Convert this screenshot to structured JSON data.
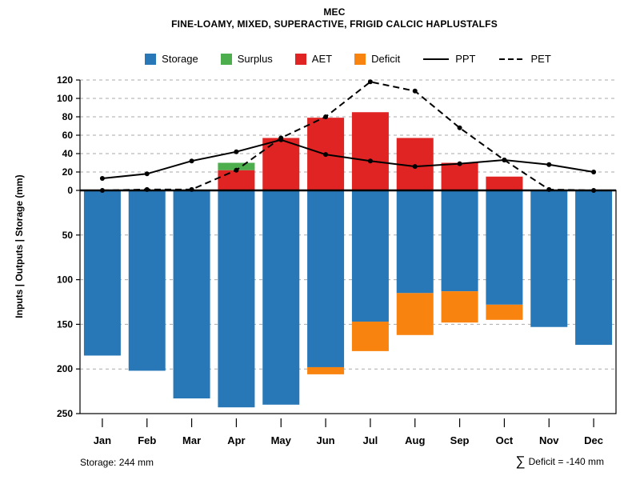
{
  "header": {
    "title": "MEC",
    "subtitle": "FINE-LOAMY, MIXED, SUPERACTIVE, FRIGID CALCIC HAPLUSTALFS"
  },
  "legend": {
    "items": [
      {
        "label": "Storage",
        "swatch": "square",
        "color": "#2878B8"
      },
      {
        "label": "Surplus",
        "swatch": "square",
        "color": "#4CAE4C"
      },
      {
        "label": "AET",
        "swatch": "square",
        "color": "#E02423"
      },
      {
        "label": "Deficit",
        "swatch": "square",
        "color": "#F9830F"
      },
      {
        "label": "PPT",
        "swatch": "line-solid",
        "color": "#000000"
      },
      {
        "label": "PET",
        "swatch": "line-dashed",
        "color": "#000000"
      }
    ]
  },
  "chart_data": {
    "type": "bar",
    "title": "MEC",
    "subtitle": "FINE-LOAMY, MIXED, SUPERACTIVE, FRIGID CALCIC HAPLUSTALFS",
    "ylabel": "Inputs | Outputs | Storage  (mm)",
    "grid": "dashed",
    "legend_position": "top",
    "categories": [
      "Jan",
      "Feb",
      "Mar",
      "Apr",
      "May",
      "Jun",
      "Jul",
      "Aug",
      "Sep",
      "Oct",
      "Nov",
      "Dec"
    ],
    "axis_up": {
      "ticks": [
        0,
        20,
        40,
        60,
        80,
        100,
        120
      ],
      "max": 120
    },
    "axis_down": {
      "ticks": [
        50,
        100,
        150,
        200,
        250
      ],
      "max": 250
    },
    "series": [
      {
        "name": "Storage",
        "type": "bar",
        "direction": "down",
        "color": "#2878B8",
        "values": [
          185,
          202,
          233,
          243,
          240,
          198,
          147,
          115,
          113,
          128,
          153,
          173
        ]
      },
      {
        "name": "Deficit",
        "type": "bar",
        "direction": "down",
        "stack_on": "Storage",
        "color": "#F9830F",
        "values": [
          0,
          0,
          0,
          0,
          0,
          8,
          33,
          47,
          35,
          17,
          0,
          0
        ]
      },
      {
        "name": "AET",
        "type": "bar",
        "direction": "up",
        "color": "#E02423",
        "values": [
          0,
          0,
          0,
          22,
          57,
          79,
          85,
          57,
          30,
          15,
          0,
          0
        ]
      },
      {
        "name": "Surplus",
        "type": "bar",
        "direction": "up",
        "stack_on": "AET",
        "color": "#4CAE4C",
        "values": [
          0,
          0,
          0,
          8,
          0,
          0,
          0,
          0,
          0,
          0,
          0,
          0
        ]
      },
      {
        "name": "PPT",
        "type": "line",
        "style": "solid",
        "marker": "dot",
        "color": "#000000",
        "values": [
          13,
          18,
          32,
          42,
          55,
          39,
          32,
          26,
          29,
          33,
          28,
          20
        ]
      },
      {
        "name": "PET",
        "type": "line",
        "style": "dashed",
        "marker": "dot",
        "color": "#000000",
        "values": [
          0,
          1,
          1,
          22,
          57,
          80,
          118,
          108,
          68,
          33,
          1,
          0
        ]
      }
    ]
  },
  "footer": {
    "storage_note": "Storage: 244 mm",
    "deficit_sigma": "∑",
    "deficit_note": "Deficit = -140 mm"
  }
}
